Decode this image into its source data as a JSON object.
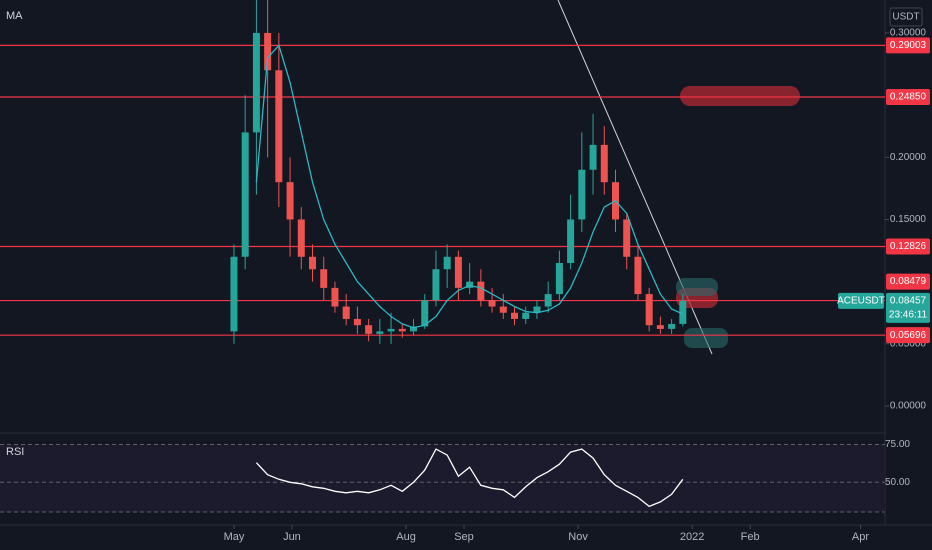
{
  "chart_data": [
    {
      "type": "candlestick",
      "indicator": "MA",
      "currency": "USDT",
      "symbol": "ACEUSDT",
      "countdown": "23:46:11",
      "last_price": {
        "value": 0.08457,
        "label": "0.08457"
      },
      "x": [
        0,
        6,
        12,
        18,
        24,
        30,
        36,
        42,
        48,
        54,
        60,
        66,
        72,
        78,
        84,
        90,
        96,
        102,
        108,
        114,
        120,
        126,
        132,
        138,
        144,
        150,
        156,
        162,
        168,
        174,
        180,
        186,
        192,
        198,
        204,
        210,
        216,
        222,
        228,
        234,
        240
      ],
      "open": [
        0.06,
        0.12,
        0.22,
        0.3,
        0.27,
        0.18,
        0.15,
        0.12,
        0.11,
        0.095,
        0.08,
        0.07,
        0.065,
        0.058,
        0.06,
        0.062,
        0.06,
        0.064,
        0.085,
        0.11,
        0.12,
        0.095,
        0.1,
        0.085,
        0.08,
        0.075,
        0.07,
        0.075,
        0.08,
        0.09,
        0.115,
        0.15,
        0.19,
        0.21,
        0.18,
        0.15,
        0.12,
        0.09,
        0.065,
        0.062,
        0.066
      ],
      "high": [
        0.13,
        0.25,
        0.33,
        0.33,
        0.3,
        0.2,
        0.16,
        0.13,
        0.12,
        0.1,
        0.09,
        0.08,
        0.07,
        0.07,
        0.075,
        0.066,
        0.07,
        0.09,
        0.125,
        0.13,
        0.125,
        0.115,
        0.11,
        0.095,
        0.09,
        0.08,
        0.08,
        0.085,
        0.1,
        0.125,
        0.17,
        0.22,
        0.235,
        0.225,
        0.19,
        0.155,
        0.13,
        0.095,
        0.072,
        0.07,
        0.09
      ],
      "low": [
        0.05,
        0.11,
        0.17,
        0.2,
        0.16,
        0.12,
        0.11,
        0.1,
        0.085,
        0.075,
        0.065,
        0.058,
        0.052,
        0.05,
        0.05,
        0.055,
        0.057,
        0.062,
        0.08,
        0.095,
        0.085,
        0.09,
        0.08,
        0.075,
        0.07,
        0.065,
        0.066,
        0.07,
        0.075,
        0.085,
        0.11,
        0.14,
        0.17,
        0.17,
        0.14,
        0.11,
        0.085,
        0.06,
        0.058,
        0.058,
        0.064
      ],
      "close": [
        0.12,
        0.22,
        0.3,
        0.27,
        0.18,
        0.15,
        0.12,
        0.11,
        0.095,
        0.08,
        0.07,
        0.065,
        0.058,
        0.06,
        0.062,
        0.06,
        0.064,
        0.085,
        0.11,
        0.12,
        0.095,
        0.1,
        0.085,
        0.08,
        0.075,
        0.07,
        0.075,
        0.08,
        0.09,
        0.115,
        0.15,
        0.19,
        0.21,
        0.18,
        0.15,
        0.12,
        0.09,
        0.065,
        0.062,
        0.066,
        0.0846
      ],
      "up_color": "#26a69a",
      "down_color": "#ef5350",
      "series": [
        {
          "color": "#2bb7c4",
          "values": [
            null,
            null,
            0.18,
            0.28,
            0.29,
            0.26,
            0.22,
            0.18,
            0.15,
            0.13,
            0.115,
            0.1,
            0.09,
            0.08,
            0.072,
            0.066,
            0.063,
            0.065,
            0.072,
            0.085,
            0.093,
            0.097,
            0.095,
            0.09,
            0.085,
            0.08,
            0.076,
            0.075,
            0.077,
            0.082,
            0.095,
            0.115,
            0.14,
            0.16,
            0.165,
            0.155,
            0.13,
            0.11,
            0.09,
            0.078,
            0.074
          ]
        }
      ],
      "levels": [
        {
          "value": 0.29003,
          "label": "0.29003"
        },
        {
          "value": 0.2485,
          "label": "0.24850"
        },
        {
          "value": 0.12826,
          "label": "0.12826"
        },
        {
          "value": 0.08479,
          "label": "0.08479"
        },
        {
          "value": 0.05696,
          "label": "0.05696"
        }
      ],
      "level_color": "#f23645",
      "xlim": [
        -125.1,
        348.1
      ],
      "ylim": [
        -0.0193,
        0.3265
      ],
      "xticks": [
        {
          "value": 0,
          "label": "May"
        },
        {
          "value": 31,
          "label": "Jun"
        },
        {
          "value": 92,
          "label": "Aug"
        },
        {
          "value": 123,
          "label": "Sep"
        },
        {
          "value": 184,
          "label": "Nov"
        },
        {
          "value": 245,
          "label": "2022"
        },
        {
          "value": 276,
          "label": "Feb"
        },
        {
          "value": 335,
          "label": "Apr"
        }
      ],
      "yticks": [
        {
          "value": 0.3,
          "label": "0.30000"
        },
        {
          "value": 0.2,
          "label": "0.20000"
        },
        {
          "value": 0.15,
          "label": "0.15000"
        },
        {
          "value": 0.05,
          "label": "0.05000"
        },
        {
          "value": 0,
          "label": "0.00000"
        }
      ]
    },
    {
      "type": "line",
      "title": "RSI",
      "x": [
        0,
        6,
        12,
        18,
        24,
        30,
        36,
        42,
        48,
        54,
        60,
        66,
        72,
        78,
        84,
        90,
        96,
        102,
        108,
        114,
        120,
        126,
        132,
        138,
        144,
        150,
        156,
        162,
        168,
        174,
        180,
        186,
        192,
        198,
        204,
        210,
        216,
        222,
        228,
        234,
        240
      ],
      "series": [
        {
          "color": "#ffffff",
          "values": [
            null,
            null,
            63,
            55,
            52,
            50,
            49,
            47,
            46,
            44,
            43,
            44,
            43,
            45,
            48,
            44,
            50,
            58,
            72,
            68,
            54,
            60,
            48,
            46,
            45,
            40,
            47,
            53,
            57,
            62,
            70,
            72,
            66,
            55,
            48,
            44,
            40,
            34,
            37,
            42,
            52
          ]
        }
      ],
      "xlim": [
        -125.1,
        348.1
      ],
      "ylim": [
        25,
        80
      ],
      "yticks": [
        {
          "value": 75,
          "label": "75.00"
        },
        {
          "value": 50,
          "label": "50.00"
        }
      ]
    }
  ]
}
